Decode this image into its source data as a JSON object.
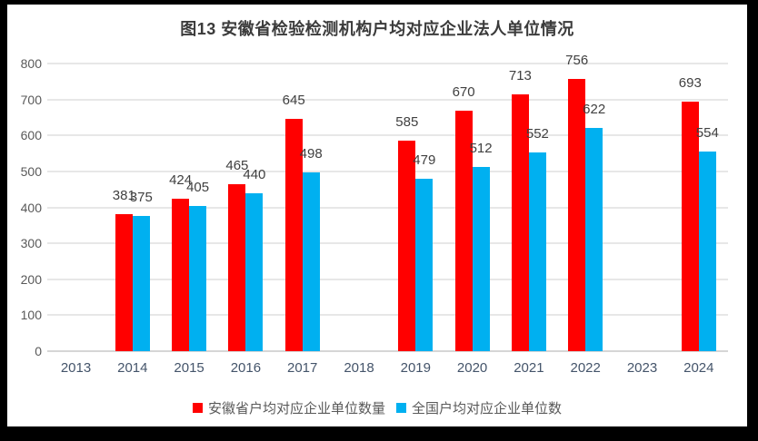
{
  "title": "图13 安徽省检验检测机构户均对应企业法人单位情况",
  "colors": {
    "anhui_series": "#FF0000",
    "national_series": "#00B0F0",
    "gridline": "#E7E7E7",
    "axis_line": "#D6D6D6",
    "ytick_label": "#595959",
    "xtick_label": "#44546A",
    "data_label": "#404040",
    "panel_background": "#FFFFFF",
    "frame_background": "#000000"
  },
  "chart_data": {
    "type": "bar",
    "title": "图13 安徽省检验检测机构户均对应企业法人单位情况",
    "categories": [
      "2013",
      "2014",
      "2015",
      "2016",
      "2017",
      "2018",
      "2019",
      "2020",
      "2021",
      "2022",
      "2023",
      "2024"
    ],
    "series": [
      {
        "name": "安徽省户均对应企业单位数量",
        "color": "#FF0000",
        "values": [
          null,
          381,
          424,
          465,
          645,
          null,
          585,
          670,
          713,
          756,
          null,
          693
        ]
      },
      {
        "name": "全国户均对应企业单位数",
        "color": "#00B0F0",
        "values": [
          null,
          375,
          405,
          440,
          498,
          null,
          479,
          512,
          552,
          622,
          null,
          554
        ]
      }
    ],
    "xlabel": "",
    "ylabel": "",
    "ylim": [
      0,
      800
    ],
    "ytick_step": 100,
    "grid": true,
    "data_labels": true,
    "legend_position": "bottom"
  }
}
